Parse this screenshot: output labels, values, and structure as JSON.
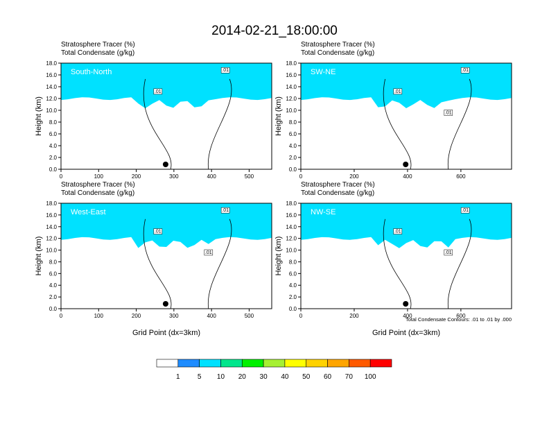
{
  "title": "2014-02-21_18:00:00",
  "colorbar": {
    "labels": [
      "1",
      "5",
      "10",
      "20",
      "30",
      "40",
      "50",
      "60",
      "70",
      "100"
    ],
    "colors": [
      "#ffffff",
      "#1e8cff",
      "#00e1ff",
      "#00e68c",
      "#00f000",
      "#a6f032",
      "#ffff00",
      "#ffd200",
      "#ffa500",
      "#ff5a00",
      "#ff0000"
    ]
  },
  "footer_note": "Total Condensate Contours: .01 to .01 by .000",
  "chart_data": [
    {
      "type": "contour",
      "panel": "South-North",
      "header_lines": [
        "Stratosphere Tracer   (%)",
        "Total Condensate   (g/kg)"
      ],
      "ylabel": "Height (km)",
      "xlabel": "",
      "xlim": [
        0,
        560
      ],
      "ylim": [
        0,
        18
      ],
      "xticks": [
        0,
        100,
        200,
        300,
        400,
        500
      ],
      "yticks": [
        "0.0",
        "2.0",
        "4.0",
        "6.0",
        "8.0",
        "10.0",
        "12.0",
        "14.0",
        "16.0",
        "18.0"
      ],
      "marker_x": 278,
      "contour_labels": [
        ".01",
        ".01"
      ]
    },
    {
      "type": "contour",
      "panel": "SW-NE",
      "header_lines": [
        "Stratosphere Tracer   (%)",
        "Total Condensate   (g/kg)"
      ],
      "ylabel": "Height (km)",
      "xlabel": "",
      "xlim": [
        0,
        790
      ],
      "ylim": [
        0,
        18
      ],
      "xticks": [
        0,
        200,
        400,
        600
      ],
      "yticks": [
        "0.0",
        "2.0",
        "4.0",
        "6.0",
        "8.0",
        "10.0",
        "12.0",
        "14.0",
        "16.0",
        "18.0"
      ],
      "marker_x": 393,
      "contour_labels": [
        ".01",
        ".01",
        ".01"
      ]
    },
    {
      "type": "contour",
      "panel": "West-East",
      "header_lines": [
        "Stratosphere Tracer   (%)",
        "Total Condensate   (g/kg)"
      ],
      "ylabel": "Height (km)",
      "xlabel": "Grid Point (dx=3km)",
      "xlim": [
        0,
        560
      ],
      "ylim": [
        0,
        18
      ],
      "xticks": [
        0,
        100,
        200,
        300,
        400,
        500
      ],
      "yticks": [
        "0.0",
        "2.0",
        "4.0",
        "6.0",
        "8.0",
        "10.0",
        "12.0",
        "14.0",
        "16.0",
        "18.0"
      ],
      "marker_x": 278,
      "contour_labels": [
        ".01",
        ".01",
        ".01"
      ]
    },
    {
      "type": "contour",
      "panel": "NW-SE",
      "header_lines": [
        "Stratosphere Tracer   (%)",
        "Total Condensate   (g/kg)"
      ],
      "ylabel": "Height (km)",
      "xlabel": "Grid Point (dx=3km)",
      "xlim": [
        0,
        790
      ],
      "ylim": [
        0,
        18
      ],
      "xticks": [
        0,
        200,
        400,
        600
      ],
      "yticks": [
        "0.0",
        "2.0",
        "4.0",
        "6.0",
        "8.0",
        "10.0",
        "12.0",
        "14.0",
        "16.0",
        "18.0"
      ],
      "marker_x": 393,
      "contour_labels": [
        ".01",
        ".01",
        ".01"
      ]
    }
  ]
}
